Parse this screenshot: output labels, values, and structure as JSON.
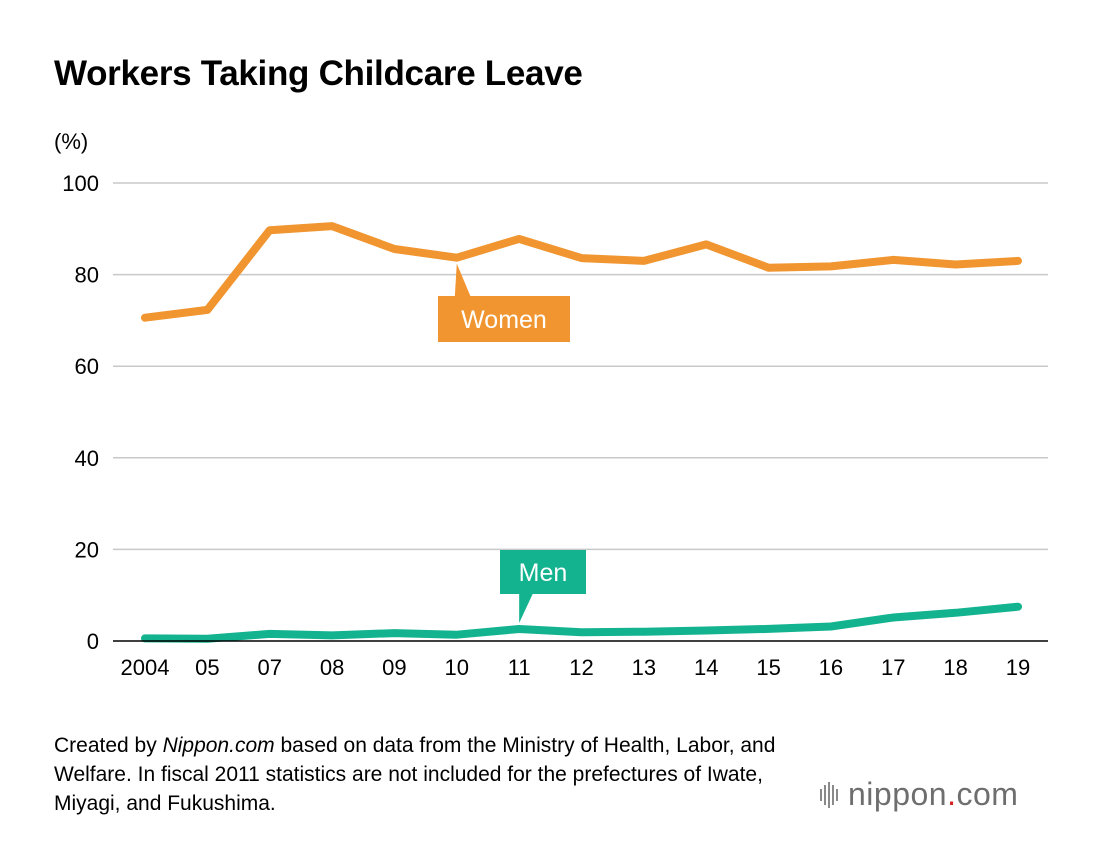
{
  "title": "Workers Taking Childcare Leave",
  "chart_data": {
    "type": "line",
    "title": "Workers Taking Childcare Leave",
    "ylabel": "(%)",
    "xlabel": "",
    "categories": [
      "2004",
      "05",
      "07",
      "08",
      "09",
      "10",
      "11",
      "12",
      "13",
      "14",
      "15",
      "16",
      "17",
      "18",
      "19"
    ],
    "ylim": [
      0,
      100
    ],
    "yticks": [
      0,
      20,
      40,
      60,
      80,
      100
    ],
    "grid": true,
    "series": [
      {
        "name": "Women",
        "color": "#f0952f",
        "values": [
          70.6,
          72.3,
          89.7,
          90.6,
          85.6,
          83.7,
          87.8,
          83.6,
          83.0,
          86.6,
          81.5,
          81.8,
          83.2,
          82.2,
          83.0
        ]
      },
      {
        "name": "Men",
        "color": "#14b38f",
        "values": [
          0.56,
          0.5,
          1.56,
          1.23,
          1.72,
          1.38,
          2.63,
          1.89,
          2.03,
          2.3,
          2.65,
          3.16,
          5.14,
          6.16,
          7.48
        ]
      }
    ]
  },
  "note": {
    "prefix": "Created by ",
    "site": "Nippon.com",
    "suffix": " based on data from the Ministry of Health, Labor, and Welfare. In fiscal 2011 statistics are not included for the prefectures of Iwate, Miyagi, and Fukushima."
  },
  "logo": {
    "name": "nippon",
    "dot": ".",
    "tld": "com"
  }
}
